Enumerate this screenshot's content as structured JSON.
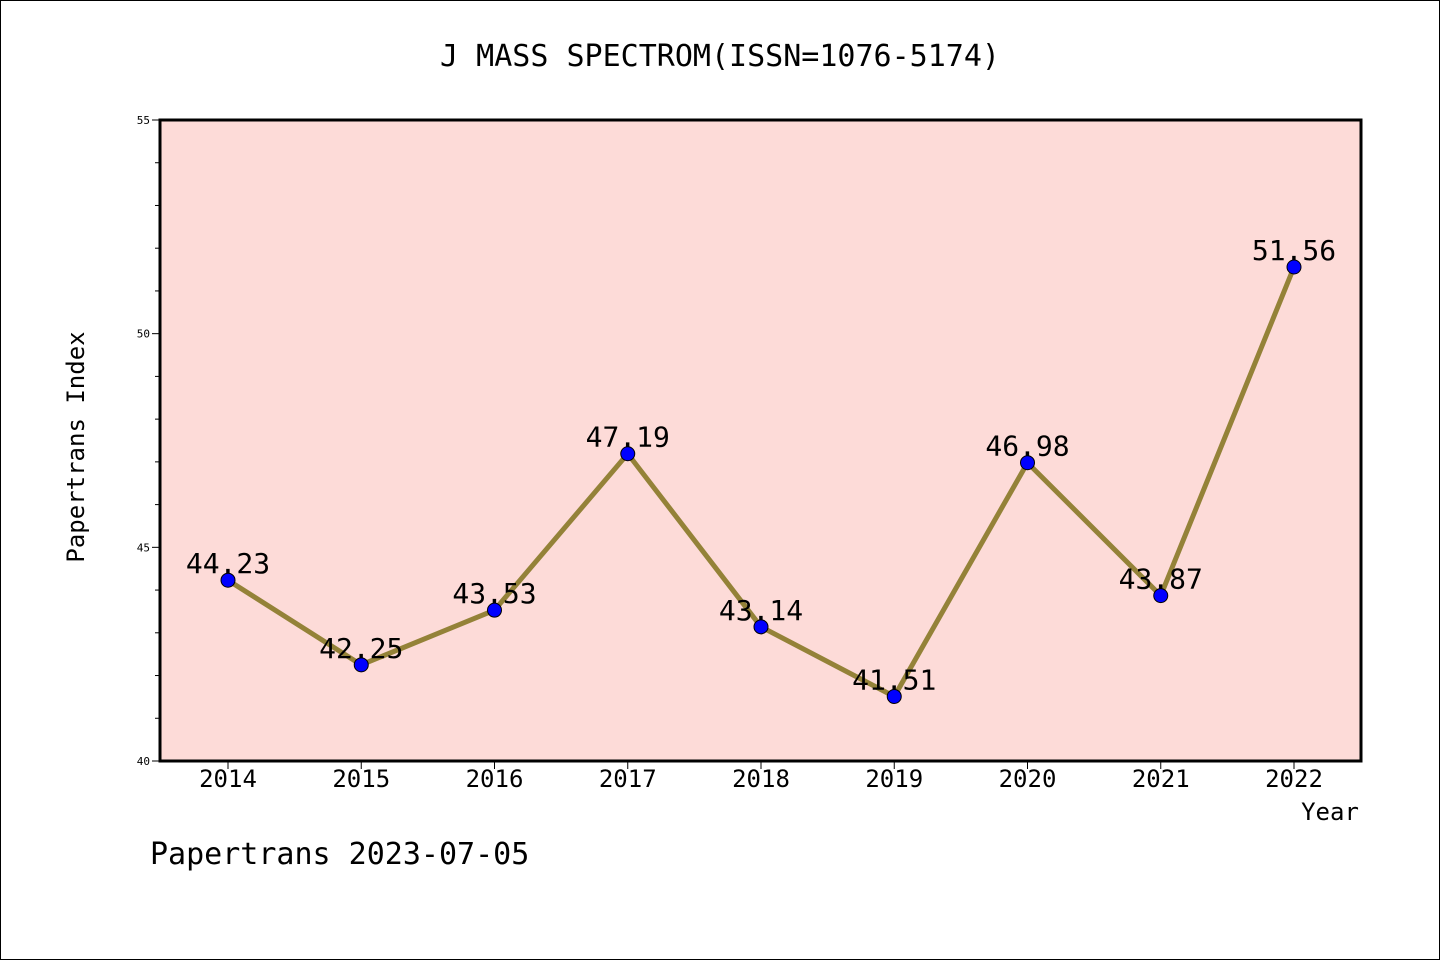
{
  "chart_data": {
    "type": "line",
    "title": "J MASS SPECTROM(ISSN=1076-5174)",
    "xlabel": "Year",
    "ylabel": "Papertrans Index",
    "categories": [
      "2014",
      "2015",
      "2016",
      "2017",
      "2018",
      "2019",
      "2020",
      "2021",
      "2022"
    ],
    "values": [
      44.23,
      42.25,
      43.53,
      47.19,
      43.14,
      41.51,
      46.98,
      43.87,
      51.56
    ],
    "value_labels": [
      "44.23",
      "42.25",
      "43.53",
      "47.19",
      "43.14",
      "41.51",
      "46.98",
      "43.87",
      "51.56"
    ],
    "ylim": [
      40,
      55
    ],
    "yticks": [
      "40",
      "45",
      "50",
      "55"
    ],
    "grid": false,
    "legend": "none",
    "footer": "Papertrans 2023-07-05",
    "colors": {
      "plot_background": "#fddbd8",
      "line": "#948238",
      "marker": "#0000ff"
    }
  }
}
